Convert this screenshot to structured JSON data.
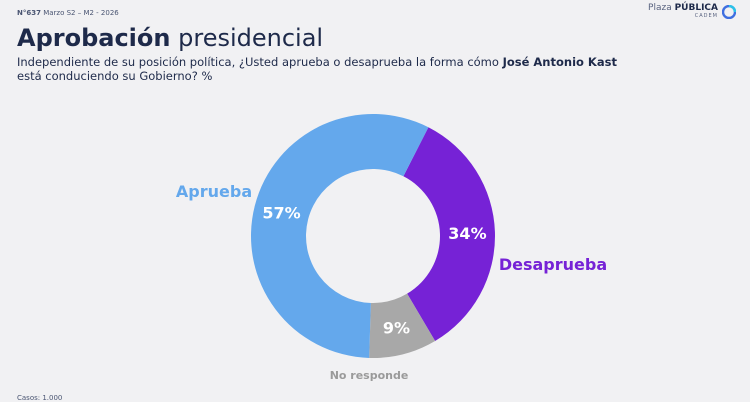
{
  "header": {
    "issue": "N°637",
    "period": "Marzo S2 – M2 - 2026",
    "brand_light": "Plaza ",
    "brand_bold": "PÚBLICA",
    "brand_sub": "CADEM"
  },
  "title": {
    "bold": "Aprobación",
    "light": " presidencial"
  },
  "subtitle": {
    "part1": "Independiente de su posición política, ¿Usted aprueba o desaprueba la forma cómo ",
    "name": "José Antonio Kast",
    "part2": "está conduciendo su Gobierno? %"
  },
  "footer": {
    "base": "Casos: 1.000"
  },
  "chart_data": {
    "type": "pie",
    "donut": true,
    "slices": [
      {
        "label": "Desaprueba",
        "value": 34,
        "value_label": "34%",
        "color": "#7622d6"
      },
      {
        "label": "No responde",
        "value": 9,
        "value_label": "9%",
        "color": "#a8a8a8"
      },
      {
        "label": "Aprueba",
        "value": 57,
        "value_label": "57%",
        "color": "#64a8ec"
      }
    ],
    "start_angle_deg": 27
  }
}
